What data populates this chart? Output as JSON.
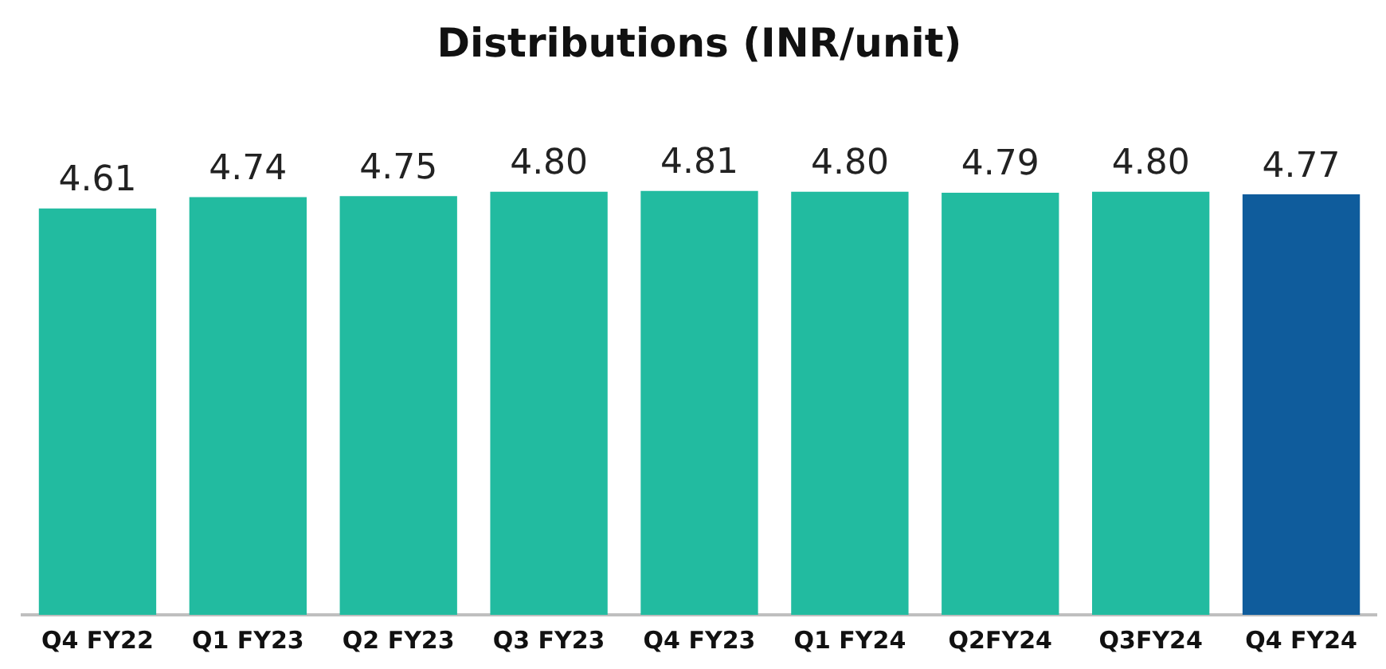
{
  "chart_data": {
    "type": "bar",
    "title": "Distributions (INR/unit)",
    "categories": [
      "Q4 FY22",
      "Q1 FY23",
      "Q2 FY23",
      "Q3 FY23",
      "Q4 FY23",
      "Q1 FY24",
      "Q2FY24",
      "Q3FY24",
      "Q4 FY24"
    ],
    "values": [
      4.61,
      4.74,
      4.75,
      4.8,
      4.81,
      4.8,
      4.79,
      4.8,
      4.77
    ],
    "value_labels": [
      "4.61",
      "4.74",
      "4.75",
      "4.80",
      "4.81",
      "4.80",
      "4.79",
      "4.80",
      "4.77"
    ],
    "colors": [
      "#22bba0",
      "#22bba0",
      "#22bba0",
      "#22bba0",
      "#22bba0",
      "#22bba0",
      "#22bba0",
      "#22bba0",
      "#0f5c9c"
    ],
    "grid": false,
    "legend": false,
    "tick_labels": "x"
  }
}
